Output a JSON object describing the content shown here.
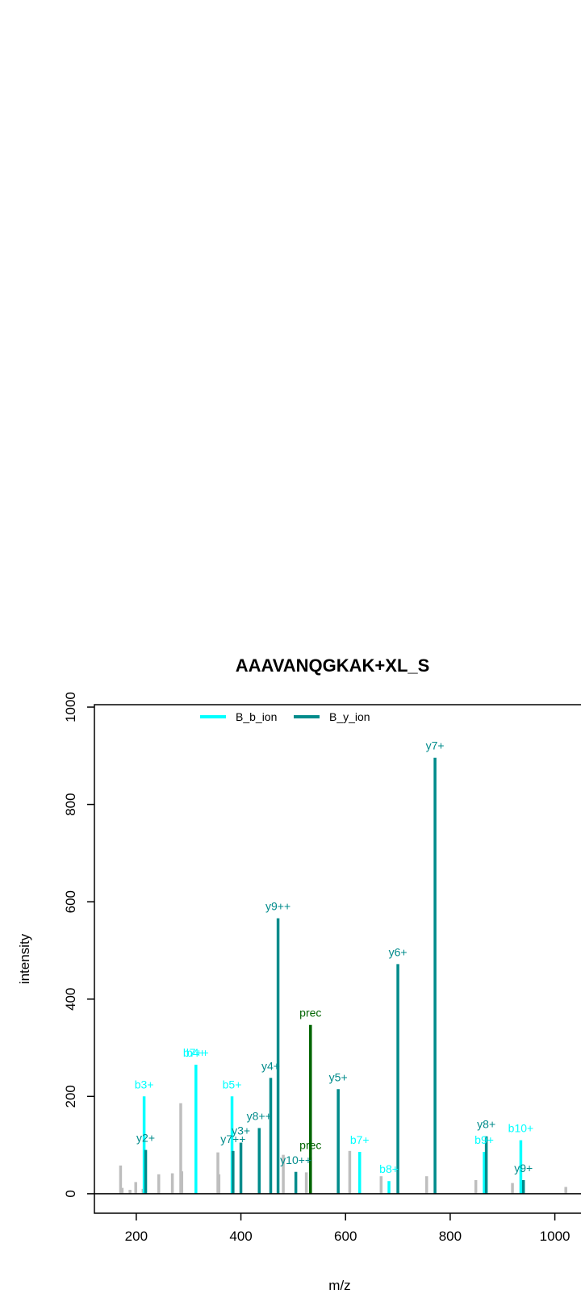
{
  "chart_data": {
    "type": "bar",
    "title": "AAAVANQGKAK+XL_S",
    "xlabel": "m/z",
    "ylabel": "intensity",
    "xlim": [
      120,
      1050
    ],
    "ylim": [
      -40,
      1005
    ],
    "x_ticks": [
      200,
      400,
      600,
      800,
      1000
    ],
    "y_ticks": [
      0,
      200,
      400,
      600,
      800,
      1000
    ],
    "grid": false,
    "legend_position": "top-left",
    "colors": {
      "unmatched": "#bebebe",
      "b_ion": "#00ffff",
      "y_ion": "#008b8b",
      "prec": "#006400",
      "axis": "#000000"
    },
    "legend": [
      {
        "name": "B_b_ion",
        "color": "#00ffff"
      },
      {
        "name": "B_y_ion",
        "color": "#008b8b"
      }
    ],
    "unmatched_peaks": [
      {
        "mz": 170,
        "intensity": 58
      },
      {
        "mz": 173,
        "intensity": 12
      },
      {
        "mz": 188,
        "intensity": 8
      },
      {
        "mz": 199,
        "intensity": 24
      },
      {
        "mz": 213,
        "intensity": 10
      },
      {
        "mz": 243,
        "intensity": 40
      },
      {
        "mz": 269,
        "intensity": 42
      },
      {
        "mz": 285,
        "intensity": 186
      },
      {
        "mz": 287,
        "intensity": 46
      },
      {
        "mz": 356,
        "intensity": 85
      },
      {
        "mz": 358,
        "intensity": 40
      },
      {
        "mz": 481,
        "intensity": 80
      },
      {
        "mz": 525,
        "intensity": 44
      },
      {
        "mz": 608,
        "intensity": 88
      },
      {
        "mz": 668,
        "intensity": 36
      },
      {
        "mz": 755,
        "intensity": 36
      },
      {
        "mz": 849,
        "intensity": 28
      },
      {
        "mz": 919,
        "intensity": 22
      },
      {
        "mz": 1021,
        "intensity": 14
      }
    ],
    "series": [
      {
        "name": "B_b_ion",
        "color": "#00ffff",
        "peaks": [
          {
            "mz": 215,
            "intensity": 200,
            "label": "b3+"
          },
          {
            "mz": 314,
            "intensity": 265,
            "label": "b7++"
          },
          {
            "mz": 314,
            "intensity": 265,
            "label": "b4+"
          },
          {
            "mz": 383,
            "intensity": 200,
            "label": "b5+"
          },
          {
            "mz": 627,
            "intensity": 86,
            "label": "b7+"
          },
          {
            "mz": 683,
            "intensity": 26,
            "label": "b8+"
          },
          {
            "mz": 865,
            "intensity": 86,
            "label": "b9+"
          },
          {
            "mz": 935,
            "intensity": 110,
            "label": "b10+"
          }
        ]
      },
      {
        "name": "B_y_ion",
        "color": "#008b8b",
        "peaks": [
          {
            "mz": 218,
            "intensity": 90,
            "label": "y2+"
          },
          {
            "mz": 385,
            "intensity": 88,
            "label": "y7++"
          },
          {
            "mz": 400,
            "intensity": 105,
            "label": "y3+"
          },
          {
            "mz": 435,
            "intensity": 135,
            "label": "y8++"
          },
          {
            "mz": 457,
            "intensity": 238,
            "label": "y4+"
          },
          {
            "mz": 471,
            "intensity": 566,
            "label": "y9++"
          },
          {
            "mz": 505,
            "intensity": 45,
            "label": "y10++"
          },
          {
            "mz": 586,
            "intensity": 215,
            "label": "y5+"
          },
          {
            "mz": 700,
            "intensity": 472,
            "label": "y6+"
          },
          {
            "mz": 771,
            "intensity": 896,
            "label": "y7+"
          },
          {
            "mz": 869,
            "intensity": 118,
            "label": "y8+"
          },
          {
            "mz": 940,
            "intensity": 28,
            "label": "y9+"
          }
        ]
      },
      {
        "name": "prec",
        "color": "#006400",
        "peaks": [
          {
            "mz": 533,
            "intensity": 347,
            "label": "prec"
          },
          {
            "mz": 533,
            "intensity": 75,
            "label": "prec"
          }
        ]
      }
    ]
  }
}
